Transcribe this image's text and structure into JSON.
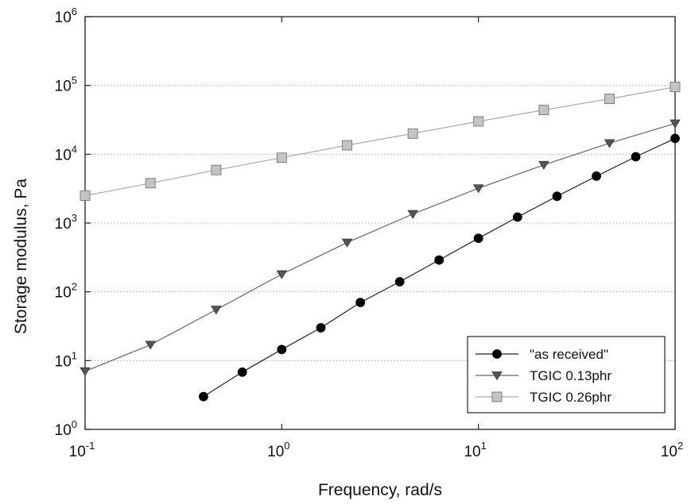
{
  "chart_data": {
    "type": "line",
    "xlabel": "Frequency, rad/s",
    "ylabel": "Storage modulus, Pa",
    "xscale": "log",
    "yscale": "log",
    "xlim": [
      0.1,
      100
    ],
    "ylim": [
      1,
      1000000
    ],
    "xticks": [
      {
        "base": "10",
        "exp": "-1"
      },
      {
        "base": "10",
        "exp": "0"
      },
      {
        "base": "10",
        "exp": "1"
      },
      {
        "base": "10",
        "exp": "2"
      }
    ],
    "yticks": [
      {
        "base": "10",
        "exp": "0"
      },
      {
        "base": "10",
        "exp": "1"
      },
      {
        "base": "10",
        "exp": "2"
      },
      {
        "base": "10",
        "exp": "3"
      },
      {
        "base": "10",
        "exp": "4"
      },
      {
        "base": "10",
        "exp": "5"
      },
      {
        "base": "10",
        "exp": "6"
      }
    ],
    "grid": "horizontal dotted",
    "legend_position": "bottom-right",
    "series": [
      {
        "name": "\"as received\"",
        "marker": "circle",
        "color": "#000000",
        "line_color": "#222222",
        "x": [
          0.4,
          0.63,
          1.0,
          1.58,
          2.51,
          3.98,
          6.31,
          10.0,
          15.8,
          25.1,
          39.8,
          63.1,
          100
        ],
        "y": [
          3,
          6.8,
          14.5,
          30,
          70,
          140,
          290,
          600,
          1220,
          2450,
          4800,
          9200,
          17000
        ]
      },
      {
        "name": "TGIC 0.13phr",
        "marker": "triangle-down",
        "color": "#555555",
        "line_color": "#666666",
        "x": [
          0.1,
          0.215,
          0.464,
          1.0,
          2.15,
          4.64,
          10.0,
          21.5,
          46.4,
          100
        ],
        "y": [
          7,
          17,
          55,
          180,
          520,
          1350,
          3200,
          7000,
          14500,
          28000
        ]
      },
      {
        "name": "TGIC 0.26phr",
        "marker": "square",
        "color": "#c4c4c4",
        "line_color": "#aaaaaa",
        "x": [
          0.1,
          0.215,
          0.464,
          1.0,
          2.15,
          4.64,
          10.0,
          21.5,
          46.4,
          100
        ],
        "y": [
          2500,
          3800,
          5900,
          8900,
          13500,
          20000,
          30000,
          44000,
          64000,
          95000
        ]
      }
    ]
  }
}
